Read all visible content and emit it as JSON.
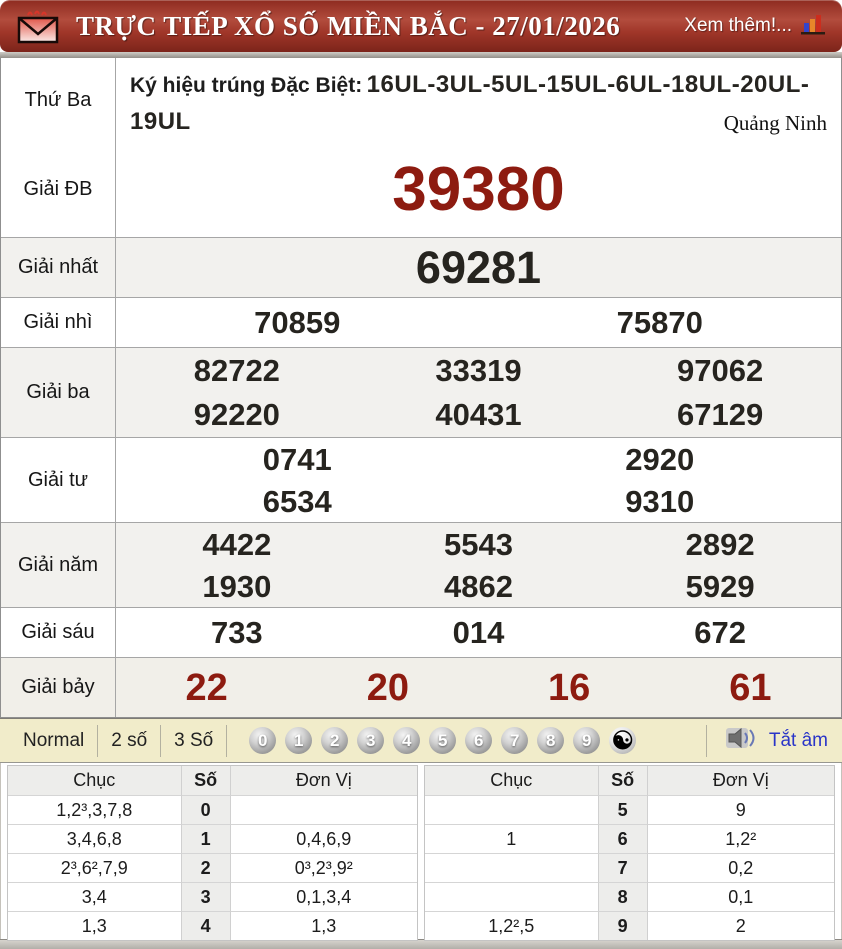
{
  "header": {
    "title": "TRỰC TIẾP XỔ SỐ MIỀN BẮC - 27/01/2026",
    "see_more": "Xem thêm!..."
  },
  "draw": {
    "day": "Thứ Ba",
    "symbol_label": "Ký hiệu trúng Đặc Biệt:",
    "symbol_codes": "16UL-3UL-5UL-15UL-6UL-18UL-20UL-19UL",
    "province": "Quảng Ninh",
    "prizes": [
      {
        "label": "Giải ĐB",
        "lines": [
          [
            "39380"
          ]
        ]
      },
      {
        "label": "Giải nhất",
        "lines": [
          [
            "69281"
          ]
        ]
      },
      {
        "label": "Giải nhì",
        "lines": [
          [
            "70859",
            "75870"
          ]
        ]
      },
      {
        "label": "Giải ba",
        "lines": [
          [
            "82722",
            "33319",
            "97062"
          ],
          [
            "92220",
            "40431",
            "67129"
          ]
        ]
      },
      {
        "label": "Giải tư",
        "lines": [
          [
            "0741",
            "2920"
          ],
          [
            "6534",
            "9310"
          ]
        ]
      },
      {
        "label": "Giải năm",
        "lines": [
          [
            "4422",
            "5543",
            "2892"
          ],
          [
            "1930",
            "4862",
            "5929"
          ]
        ]
      },
      {
        "label": "Giải sáu",
        "lines": [
          [
            "733",
            "014",
            "672"
          ]
        ]
      },
      {
        "label": "Giải bảy",
        "lines": [
          [
            "22",
            "20",
            "16",
            "61"
          ]
        ]
      }
    ]
  },
  "toolbar": {
    "modes": [
      "Normal",
      "2 số",
      "3 Số"
    ],
    "digits": [
      "0",
      "1",
      "2",
      "3",
      "4",
      "5",
      "6",
      "7",
      "8",
      "9"
    ],
    "yin_yang": "☯",
    "mute_label": "Tắt âm"
  },
  "loto": {
    "headers": [
      "Chục",
      "Số",
      "Đơn Vị"
    ],
    "tables": [
      {
        "rows": [
          [
            "1,2³,3,7,8",
            "0",
            ""
          ],
          [
            "3,4,6,8",
            "1",
            "0,4,6,9"
          ],
          [
            "2³,6²,7,9",
            "2",
            "0³,2³,9²"
          ],
          [
            "3,4",
            "3",
            "0,1,3,4"
          ],
          [
            "1,3",
            "4",
            "1,3"
          ]
        ]
      },
      {
        "rows": [
          [
            "",
            "5",
            "9"
          ],
          [
            "1",
            "6",
            "1,2²"
          ],
          [
            "",
            "7",
            "0,2"
          ],
          [
            "",
            "8",
            "0,1"
          ],
          [
            "1,2²,5",
            "9",
            "2"
          ]
        ]
      }
    ]
  },
  "colors": {
    "header_red": "#a03629",
    "accent_dark_red": "#8d1b10",
    "number_black": "#26241f",
    "toolbar_bg": "#f1ecca",
    "mute_blue": "#2a35c8"
  }
}
